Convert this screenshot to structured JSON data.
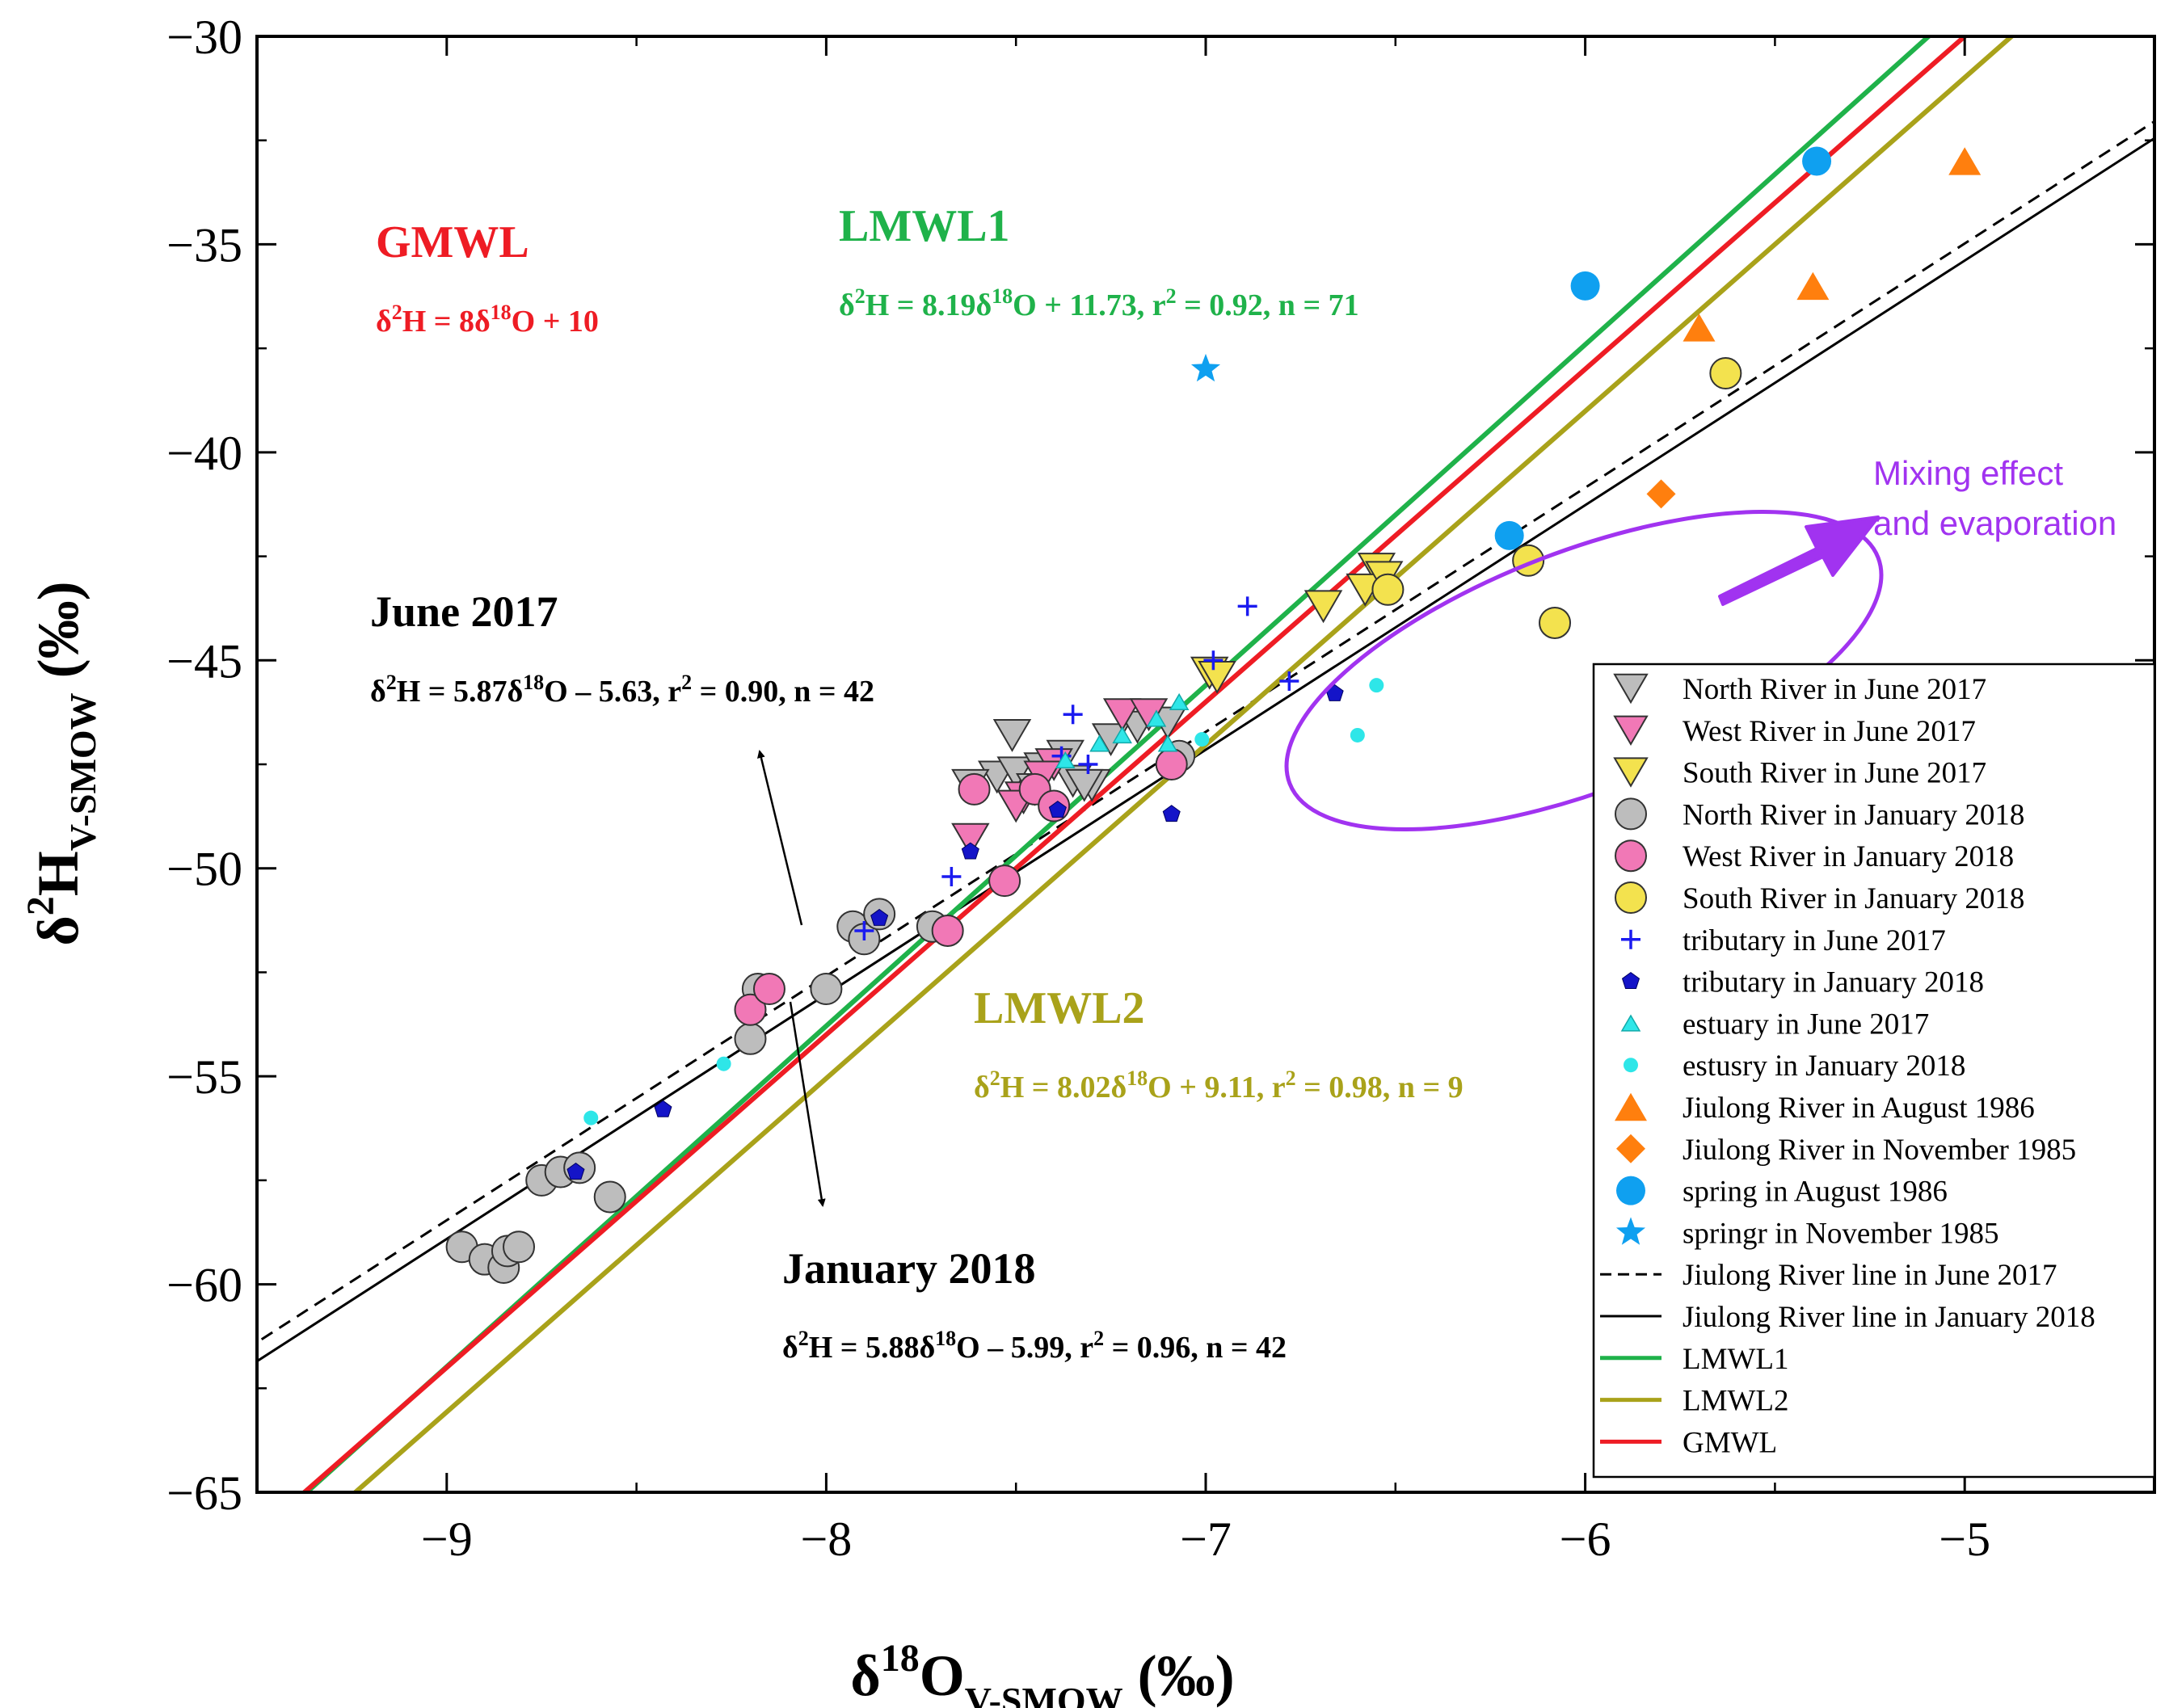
{
  "chart_data": {
    "type": "scatter",
    "axes": {
      "x": {
        "range": [
          -9.5,
          -4.5
        ],
        "ticks": [
          -9,
          -8,
          -7,
          -6,
          -5
        ],
        "tick_labels": [
          "−9",
          "−8",
          "−7",
          "−6",
          "−5"
        ],
        "label_main": "δ",
        "label_sup": "18",
        "label_mid": "O",
        "label_sub": "V-SMOW",
        "label_unit": " (‰)"
      },
      "y": {
        "range": [
          -65,
          -30
        ],
        "ticks": [
          -65,
          -60,
          -55,
          -50,
          -45,
          -40,
          -35,
          -30
        ],
        "tick_labels": [
          "−65",
          "−60",
          "−55",
          "−50",
          "−45",
          "−40",
          "−35",
          "−30"
        ],
        "label_main": "δ",
        "label_sup": "2",
        "label_mid": "H",
        "label_sub": "V-SMOW",
        "label_unit": " (‰)"
      }
    },
    "lines": [
      {
        "name": "Jiulong River line in June 2017",
        "slope": 5.87,
        "intercept": -5.63,
        "color": "#000000",
        "dash": true
      },
      {
        "name": "Jiulong River line in January 2018",
        "slope": 5.88,
        "intercept": -5.99,
        "color": "#000000",
        "dash": false
      },
      {
        "name": "LMWL1",
        "slope": 8.19,
        "intercept": 11.73,
        "color": "#1fb24a",
        "dash": false
      },
      {
        "name": "LMWL2",
        "slope": 8.02,
        "intercept": 9.11,
        "color": "#a9a21a",
        "dash": false
      },
      {
        "name": "GMWL",
        "slope": 8,
        "intercept": 10,
        "color": "#ee1c24",
        "dash": false
      }
    ],
    "series": [
      {
        "name": "North River in June 2017",
        "marker": "tri-down",
        "color": "#bdbdbd",
        "size": 44,
        "points": [
          [
            -7.51,
            -46.8
          ],
          [
            -7.55,
            -47.8
          ],
          [
            -7.5,
            -47.7
          ],
          [
            -7.43,
            -47.6
          ],
          [
            -7.37,
            -47.3
          ],
          [
            -7.35,
            -47.9
          ],
          [
            -7.3,
            -48.0
          ],
          [
            -7.25,
            -46.9
          ],
          [
            -7.18,
            -46.6
          ],
          [
            -7.1,
            -46.5
          ],
          [
            -7.62,
            -48.0
          ],
          [
            -7.45,
            -48.1
          ],
          [
            -7.32,
            -48.0
          ]
        ]
      },
      {
        "name": "West River in June 2017",
        "marker": "tri-down",
        "color": "#f178b6",
        "size": 44,
        "points": [
          [
            -7.62,
            -49.3
          ],
          [
            -7.48,
            -48.3
          ],
          [
            -7.4,
            -47.5
          ],
          [
            -7.22,
            -46.3
          ],
          [
            -7.15,
            -46.3
          ],
          [
            -7.5,
            -48.5
          ],
          [
            -7.43,
            -47.8
          ]
        ]
      },
      {
        "name": "South River in June 2017",
        "marker": "tri-down",
        "color": "#f3e24e",
        "size": 44,
        "points": [
          [
            -6.69,
            -43.7
          ],
          [
            -6.55,
            -42.8
          ],
          [
            -6.58,
            -43.3
          ],
          [
            -6.99,
            -45.3
          ],
          [
            -6.97,
            -45.4
          ],
          [
            -6.53,
            -43.0
          ]
        ]
      },
      {
        "name": "North River in January 2018",
        "marker": "circle",
        "color": "#bdbdbd",
        "size": 38,
        "points": [
          [
            -8.96,
            -59.1
          ],
          [
            -8.9,
            -59.4
          ],
          [
            -8.85,
            -59.6
          ],
          [
            -8.84,
            -59.2
          ],
          [
            -8.81,
            -59.1
          ],
          [
            -8.75,
            -57.5
          ],
          [
            -8.7,
            -57.3
          ],
          [
            -8.65,
            -57.2
          ],
          [
            -8.57,
            -57.9
          ],
          [
            -8.2,
            -54.1
          ],
          [
            -8.0,
            -52.9
          ],
          [
            -7.93,
            -51.4
          ],
          [
            -7.9,
            -51.7
          ],
          [
            -7.86,
            -51.1
          ],
          [
            -7.72,
            -51.4
          ],
          [
            -8.18,
            -52.9
          ],
          [
            -7.07,
            -47.3
          ]
        ]
      },
      {
        "name": "West River in January 2018",
        "marker": "circle",
        "color": "#f178b6",
        "size": 38,
        "points": [
          [
            -8.2,
            -53.4
          ],
          [
            -8.15,
            -52.9
          ],
          [
            -7.68,
            -51.5
          ],
          [
            -7.53,
            -50.3
          ],
          [
            -7.61,
            -48.1
          ],
          [
            -7.45,
            -48.1
          ],
          [
            -7.4,
            -48.5
          ],
          [
            -7.09,
            -47.5
          ]
        ]
      },
      {
        "name": "South River in January 2018",
        "marker": "circle",
        "color": "#f3e24e",
        "size": 38,
        "points": [
          [
            -6.52,
            -43.3
          ],
          [
            -6.15,
            -42.6
          ],
          [
            -6.08,
            -44.1
          ],
          [
            -5.63,
            -38.1
          ]
        ]
      },
      {
        "name": "tributary in June 2017",
        "marker": "plus",
        "color": "#1b1bf0",
        "size": 24,
        "points": [
          [
            -7.35,
            -46.3
          ],
          [
            -6.89,
            -43.7
          ],
          [
            -7.67,
            -50.2
          ],
          [
            -7.9,
            -51.5
          ],
          [
            -7.31,
            -47.5
          ],
          [
            -7.38,
            -47.3
          ],
          [
            -6.78,
            -45.5
          ],
          [
            -6.98,
            -45.0
          ]
        ]
      },
      {
        "name": "tributary in January 2018",
        "marker": "pentagon",
        "color": "#1414c8",
        "size": 22,
        "points": [
          [
            -8.66,
            -57.3
          ],
          [
            -8.43,
            -55.8
          ],
          [
            -7.86,
            -51.2
          ],
          [
            -7.62,
            -49.6
          ],
          [
            -7.39,
            -48.6
          ],
          [
            -7.09,
            -48.7
          ],
          [
            -6.66,
            -45.8
          ]
        ]
      },
      {
        "name": "estuary in June 2017",
        "marker": "tri-up",
        "color": "#2ee6e8",
        "size": 22,
        "points": [
          [
            -7.37,
            -47.4
          ],
          [
            -7.28,
            -47.0
          ],
          [
            -7.22,
            -46.8
          ],
          [
            -7.13,
            -46.4
          ],
          [
            -7.07,
            -46.0
          ],
          [
            -7.1,
            -47.0
          ]
        ]
      },
      {
        "name": "estusry in January 2018",
        "marker": "circle",
        "color": "#2ee6e8",
        "size": 18,
        "points": [
          [
            -8.62,
            -56.0
          ],
          [
            -8.27,
            -54.7
          ],
          [
            -7.01,
            -46.9
          ],
          [
            -6.55,
            -45.6
          ],
          [
            -6.6,
            -46.8
          ]
        ]
      },
      {
        "name": "Jiulong River in August 1986",
        "marker": "tri-up",
        "color": "#ff7f0e",
        "size": 40,
        "points": [
          [
            -5.0,
            -33.0
          ],
          [
            -5.4,
            -36.0
          ],
          [
            -5.7,
            -37.0
          ]
        ]
      },
      {
        "name": "Jiulong River in November 1985",
        "marker": "diamond",
        "color": "#ff7f0e",
        "size": 36,
        "points": [
          [
            -5.8,
            -41.0
          ]
        ]
      },
      {
        "name": "spring in August 1986",
        "marker": "circle",
        "color": "#0fa0f0",
        "size": 36,
        "points": [
          [
            -6.0,
            -36.0
          ],
          [
            -5.39,
            -33.0
          ],
          [
            -6.2,
            -42.0
          ]
        ]
      },
      {
        "name": "springr in November 1985",
        "marker": "star",
        "color": "#0fa0f0",
        "size": 38,
        "points": [
          [
            -7.0,
            -38.0
          ]
        ]
      }
    ],
    "annotations": {
      "gmwl": {
        "title": "GMWL",
        "eq_a": "δ",
        "eq_sup1": "2",
        "eq_b": "H = 8δ",
        "eq_sup2": "18",
        "eq_c": "O + 10"
      },
      "lmwl1": {
        "title": "LMWL1",
        "eq_a": "δ",
        "eq_sup1": "2",
        "eq_b": "H = 8.19δ",
        "eq_sup2": "18",
        "eq_c": "O + 11.73, r",
        "eq_sup3": "2",
        "eq_d": " = 0.92, n = 71"
      },
      "lmwl2": {
        "title": "LMWL2",
        "eq_a": "δ",
        "eq_sup1": "2",
        "eq_b": "H = 8.02δ",
        "eq_sup2": "18",
        "eq_c": "O + 9.11, r",
        "eq_sup3": "2",
        "eq_d": " = 0.98, n = 9"
      },
      "june": {
        "title": "June 2017",
        "eq_a": "δ",
        "eq_sup1": "2",
        "eq_b": "H = 5.87δ",
        "eq_sup2": "18",
        "eq_c": "O – 5.63, r",
        "eq_sup3": "2",
        "eq_d": " = 0.90, n = 42"
      },
      "january": {
        "title": "January 2018",
        "eq_a": "δ",
        "eq_sup1": "2",
        "eq_b": "H = 5.88δ",
        "eq_sup2": "18",
        "eq_c": "O – 5.99, r",
        "eq_sup3": "2",
        "eq_d": " = 0.96, n = 42"
      },
      "mixing_line1": "Mixing effect",
      "mixing_line2": "and evaporation"
    },
    "legend": {
      "position": "bottom-right"
    }
  }
}
